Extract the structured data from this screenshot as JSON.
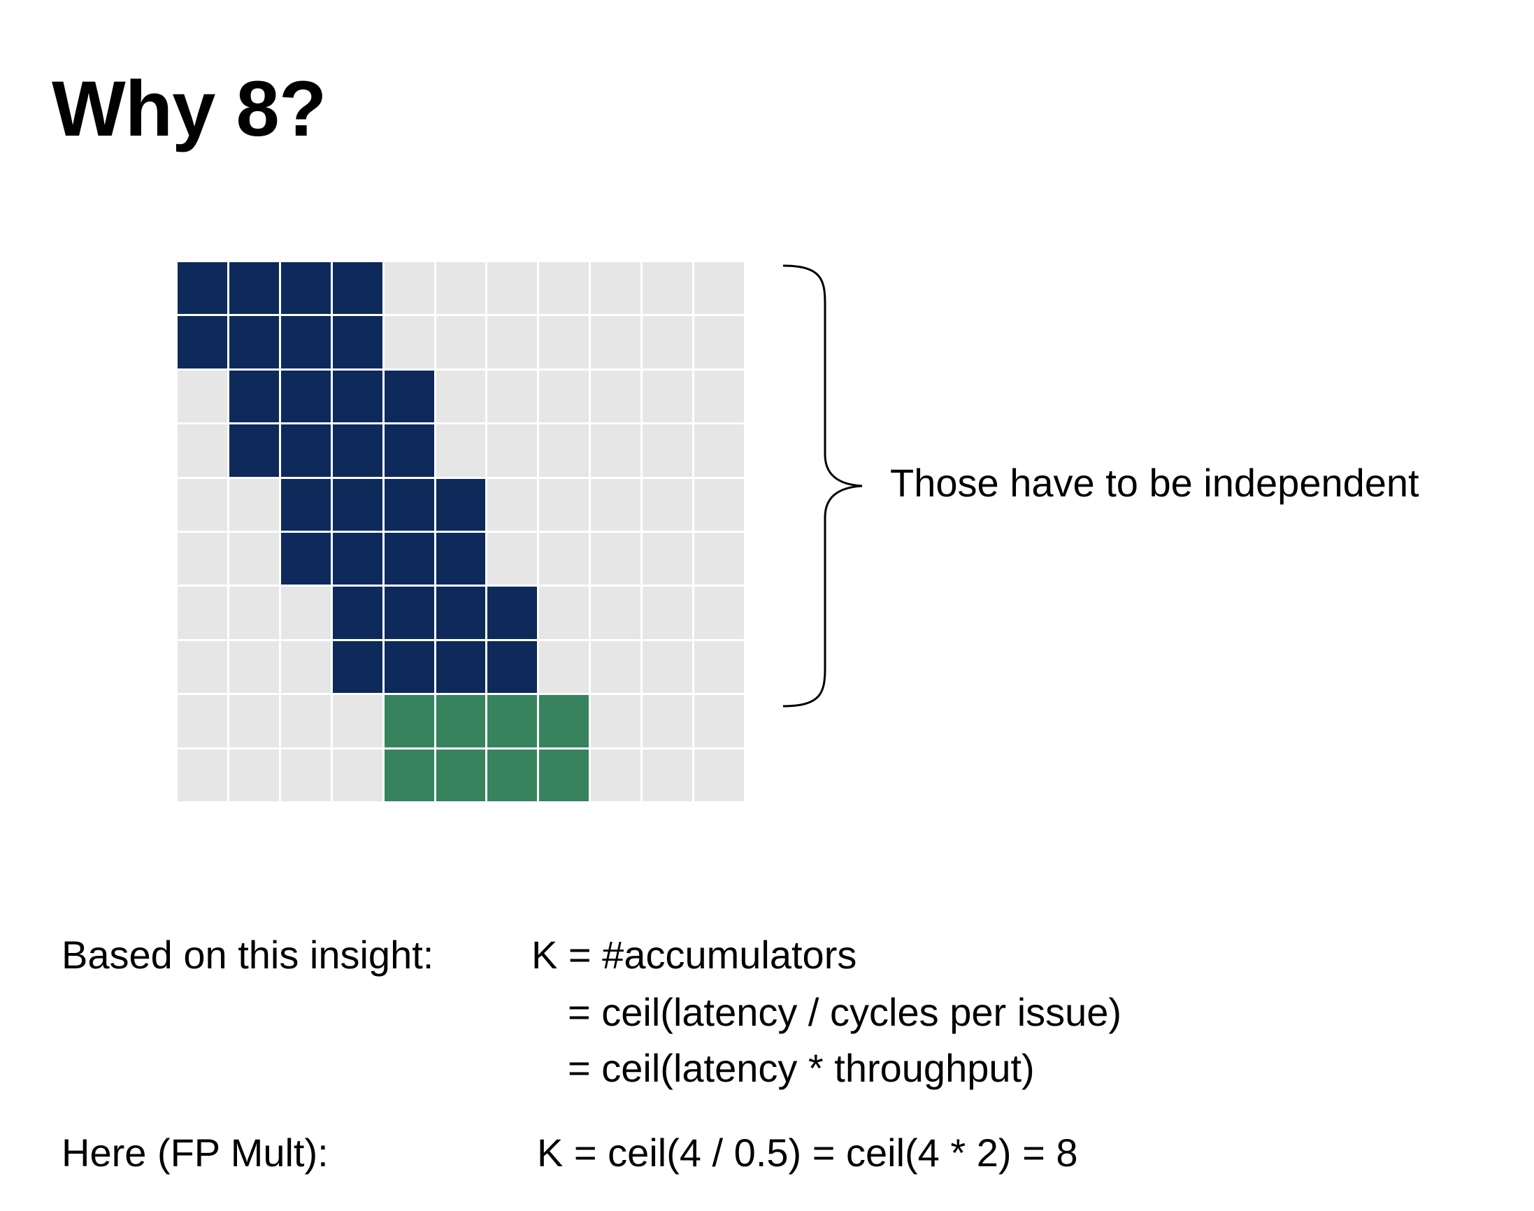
{
  "title": "Why 8?",
  "diagram": {
    "columns": 11,
    "rows": [
      {
        "dependent": [
          0,
          1,
          2,
          3
        ],
        "next": []
      },
      {
        "dependent": [
          0,
          1,
          2,
          3
        ],
        "next": []
      },
      {
        "dependent": [
          1,
          2,
          3,
          4
        ],
        "next": []
      },
      {
        "dependent": [
          1,
          2,
          3,
          4
        ],
        "next": []
      },
      {
        "dependent": [
          2,
          3,
          4,
          5
        ],
        "next": []
      },
      {
        "dependent": [
          2,
          3,
          4,
          5
        ],
        "next": []
      },
      {
        "dependent": [
          3,
          4,
          5,
          6
        ],
        "next": []
      },
      {
        "dependent": [
          3,
          4,
          5,
          6
        ],
        "next": []
      },
      {
        "dependent": [],
        "next": [
          4,
          5,
          6,
          7
        ]
      },
      {
        "dependent": [],
        "next": [
          4,
          5,
          6,
          7
        ]
      }
    ],
    "colors": {
      "empty": "#e6e6e6",
      "dependent": "#0e2a5b",
      "next": "#37835e",
      "gridline": "#ffffff"
    },
    "brace_label": "Those have to be independent"
  },
  "formula": {
    "insight_label": "Based on this insight:",
    "line1": "K = #accumulators",
    "line2": "= ceil(latency / cycles per issue)",
    "line3": "= ceil(latency * throughput)",
    "example_label": "Here (FP Mult):",
    "example": "K = ceil(4 / 0.5) = ceil(4 * 2) = 8"
  }
}
